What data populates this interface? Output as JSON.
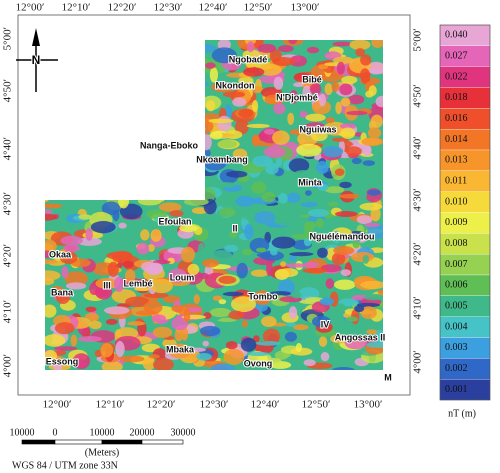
{
  "map": {
    "lon_top": [
      "12°00′",
      "12°10′",
      "12°20′",
      "12°30′",
      "12°40′",
      "12°50′",
      "13°00′"
    ],
    "lon_bottom": [
      "12°00′",
      "12°10′",
      "12°20′",
      "12°30′",
      "12°40′",
      "12°50′",
      "13°00′"
    ],
    "lat_left": [
      "5°00′",
      "4°50′",
      "4°40′",
      "4°30′",
      "4°20′",
      "4°10′",
      "4°00′"
    ],
    "lat_right": [
      "5°00′",
      "4°50′",
      "4°40′",
      "4°30′",
      "4°20′",
      "4°10′",
      "4°00′"
    ],
    "north": "N",
    "places": [
      "Ngobadé",
      "Bibé",
      "Nkondon",
      "N'Djombé",
      "Nguiwas",
      "Nanga-Eboko",
      "Nkoambang",
      "Minta",
      "Efoulan",
      "II",
      "Nguélémandou",
      "Okaa",
      "III",
      "Lembé",
      "Loum",
      "Bana",
      "Tombo",
      "IV",
      "Angossas II",
      "Mbaka",
      "Essong",
      "Ovong",
      "M"
    ],
    "colorbar": {
      "labels": [
        "0.040",
        "0.027",
        "0.022",
        "0.018",
        "0.016",
        "0.014",
        "0.013",
        "0.011",
        "0.010",
        "0.009",
        "0.008",
        "0.007",
        "0.006",
        "0.005",
        "0.004",
        "0.003",
        "0.002",
        "0.001"
      ],
      "colors": [
        "#e8a6d6",
        "#e566b8",
        "#e0357e",
        "#e8303a",
        "#ef4f2a",
        "#f27626",
        "#f7952b",
        "#f9b733",
        "#f6d93a",
        "#eef04a",
        "#c9e24c",
        "#96d152",
        "#5fbe55",
        "#3fb88a",
        "#45c3c7",
        "#3b9fe0",
        "#3068c8",
        "#2a3f9e"
      ],
      "unit": "nT (m)"
    },
    "scale": {
      "labels": [
        "10000",
        "0",
        "10000",
        "20000",
        "30000"
      ],
      "unit": "(Meters)",
      "projection": "WGS 84 / UTM zone 33N"
    }
  }
}
